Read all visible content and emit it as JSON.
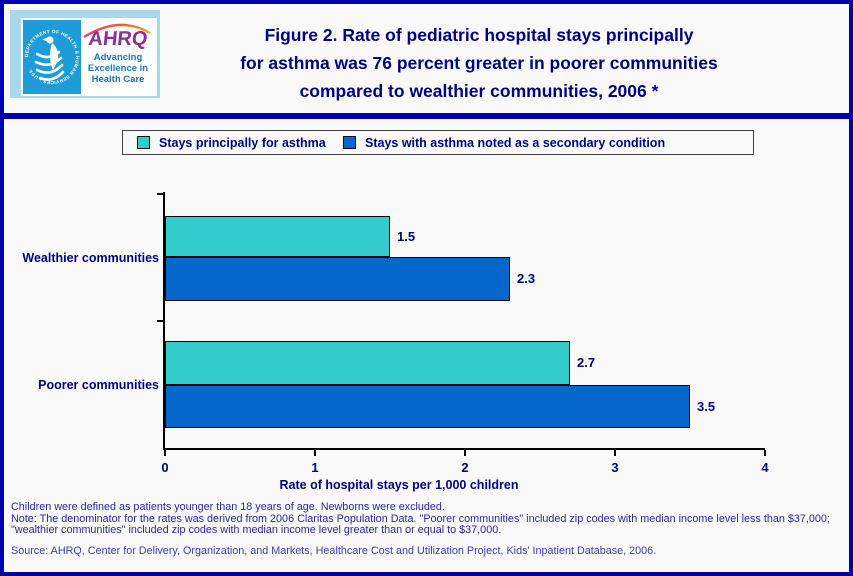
{
  "header": {
    "logo": {
      "hhs_circular_text": "DEPARTMENT OF HEALTH & HUMAN SERVICES • USA",
      "acronym": "AHRQ",
      "tagline": "Advancing Excellence in Health Care"
    },
    "title_lines": [
      "Figure 2. Rate of pediatric hospital stays principally",
      "for asthma was 76 percent greater in poorer communities",
      "compared to wealthier communities, 2006 *"
    ]
  },
  "legend": {
    "items": [
      {
        "label": "Stays principally for asthma",
        "color": "#33CCCC"
      },
      {
        "label": "Stays with asthma noted as a secondary condition",
        "color": "#0566CC"
      }
    ]
  },
  "chart_data": {
    "type": "bar",
    "orientation": "horizontal",
    "title": "Figure 2. Rate of pediatric hospital stays principally for asthma was 76 percent greater in poorer communities compared to wealthier communities, 2006 *",
    "categories": [
      "Wealthier communities",
      "Poorer communities"
    ],
    "series": [
      {
        "name": "Stays principally for asthma",
        "color": "#33CCCC",
        "values": [
          1.5,
          2.7
        ]
      },
      {
        "name": "Stays with asthma noted as a secondary condition",
        "color": "#0566CC",
        "values": [
          2.3,
          3.5
        ]
      }
    ],
    "xlabel": "Rate of hospital stays per 1,000 children",
    "ylabel": "",
    "xlim": [
      0,
      4
    ],
    "x_ticks": [
      0,
      1,
      2,
      3,
      4
    ],
    "grid": false,
    "legend_position": "top",
    "bar_labels": true
  },
  "footer": {
    "line1": "Children were defined as patients younger than 18 years of age. Newborns were excluded.",
    "note": "Note: The denominator for the rates was derived from 2006 Claritas Population Data. \"Poorer communities\" included zip codes with median income level less than $37,000; \"wealthier communities\" included zip codes with median income level greater than or equal to $37,000.",
    "source": "Source: AHRQ, Center for Delivery, Organization, and Markets, Healthcare Cost and Utilization Project, Kids' Inpatient Database, 2006."
  },
  "colors": {
    "page_border": "#0000AA",
    "title_text": "#000080",
    "bar_teal": "#33CCCC",
    "bar_blue": "#0566CC",
    "hhs_panel_blue": "#1E9CD7",
    "ahrq_purple": "#8B3096",
    "tagline_blue": "#1B75BC"
  }
}
